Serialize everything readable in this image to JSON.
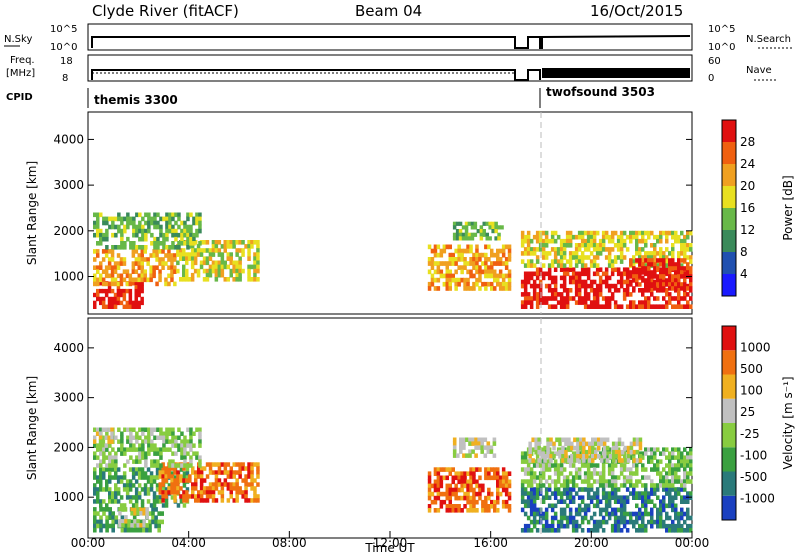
{
  "header": {
    "station": "Clyde River (fitACF)",
    "beam": "Beam 04",
    "date": "16/Oct/2015"
  },
  "strips": {
    "nsky_label": "N.Sky",
    "nsky_ticks": [
      "10^5",
      "10^0"
    ],
    "nsearch_label": "N.Search",
    "nsearch_ticks": [
      "10^5",
      "10^0"
    ],
    "freq_label_1": "Freq.",
    "freq_label_2": "[MHz]",
    "freq_ticks": [
      "18",
      "8"
    ],
    "nave_label": "Nave",
    "nave_ticks": [
      "60",
      "0"
    ],
    "cpid_label": "CPID",
    "cpid_segments": [
      {
        "label": "themis 3300",
        "start_hour": 0
      },
      {
        "label": "twofsound 3503",
        "start_hour": 18
      }
    ]
  },
  "x_axis": {
    "label": "Time UT",
    "ticks": [
      "00:00",
      "04:00",
      "08:00",
      "12:00",
      "16:00",
      "20:00",
      "00:00"
    ],
    "range_hours": [
      0,
      24
    ]
  },
  "chart_data": [
    {
      "type": "heatmap",
      "name": "power",
      "ylabel": "Slant Range [km]",
      "y_ticks": [
        1000,
        2000,
        3000,
        4000
      ],
      "ylim": [
        180,
        4600
      ],
      "colorbar_label": "Power [dB]",
      "colorbar_ticks": [
        "28",
        "24",
        "20",
        "16",
        "12",
        "8",
        "4"
      ],
      "colorbar_colors": [
        "#1a1aff",
        "#2050b0",
        "#3a8a5a",
        "#68b848",
        "#e8e020",
        "#f0a020",
        "#f06010",
        "#e01010"
      ],
      "regions": [
        {
          "t": [
            0.2,
            2.2
          ],
          "r": [
            300,
            900
          ],
          "level": 7
        },
        {
          "t": [
            0.2,
            3.5
          ],
          "r": [
            800,
            1600
          ],
          "level": 5
        },
        {
          "t": [
            3.5,
            6.8
          ],
          "r": [
            900,
            1800
          ],
          "level": 4
        },
        {
          "t": [
            0.2,
            4.5
          ],
          "r": [
            1600,
            2400
          ],
          "level": 3
        },
        {
          "t": [
            13.5,
            16.8
          ],
          "r": [
            700,
            1700
          ],
          "level": 5
        },
        {
          "t": [
            14.5,
            16.5
          ],
          "r": [
            1800,
            2200
          ],
          "level": 3
        },
        {
          "t": [
            17.2,
            24
          ],
          "r": [
            300,
            1200
          ],
          "level": 7
        },
        {
          "t": [
            17.2,
            24
          ],
          "r": [
            1200,
            2000
          ],
          "level": 4
        },
        {
          "t": [
            21.5,
            24
          ],
          "r": [
            700,
            1400
          ],
          "level": 7
        }
      ]
    },
    {
      "type": "heatmap",
      "name": "velocity",
      "ylabel": "Slant Range [km]",
      "y_ticks": [
        1000,
        2000,
        3000,
        4000
      ],
      "ylim": [
        180,
        4600
      ],
      "colorbar_label": "Velocity [m s⁻¹]",
      "colorbar_ticks": [
        "1000",
        "500",
        "100",
        "25",
        "-25",
        "-100",
        "-500",
        "-1000"
      ],
      "colorbar_colors": [
        "#1a40c0",
        "#2a7a7a",
        "#3aa040",
        "#88cc40",
        "#c0c0c0",
        "#f0b020",
        "#f07010",
        "#e01010"
      ],
      "regions": [
        {
          "t": [
            0.2,
            3.0
          ],
          "r": [
            300,
            800
          ],
          "level": 2
        },
        {
          "t": [
            1.2,
            2.4
          ],
          "r": [
            400,
            800
          ],
          "level": 4
        },
        {
          "t": [
            0.2,
            4.0
          ],
          "r": [
            800,
            1600
          ],
          "level": 2
        },
        {
          "t": [
            2.8,
            6.8
          ],
          "r": [
            900,
            1700
          ],
          "level": 6
        },
        {
          "t": [
            0.2,
            4.5
          ],
          "r": [
            1600,
            2400
          ],
          "level": 3
        },
        {
          "t": [
            0.2,
            1.0
          ],
          "r": [
            2000,
            2400
          ],
          "level": 4
        },
        {
          "t": [
            13.5,
            16.8
          ],
          "r": [
            700,
            1600
          ],
          "level": 6
        },
        {
          "t": [
            14.5,
            16.2
          ],
          "r": [
            1800,
            2200
          ],
          "level": 4
        },
        {
          "t": [
            17.2,
            24
          ],
          "r": [
            300,
            1200
          ],
          "level": 1
        },
        {
          "t": [
            17.2,
            24
          ],
          "r": [
            1200,
            2000
          ],
          "level": 3
        },
        {
          "t": [
            17.5,
            22
          ],
          "r": [
            1700,
            2200
          ],
          "level": 4
        }
      ]
    }
  ]
}
